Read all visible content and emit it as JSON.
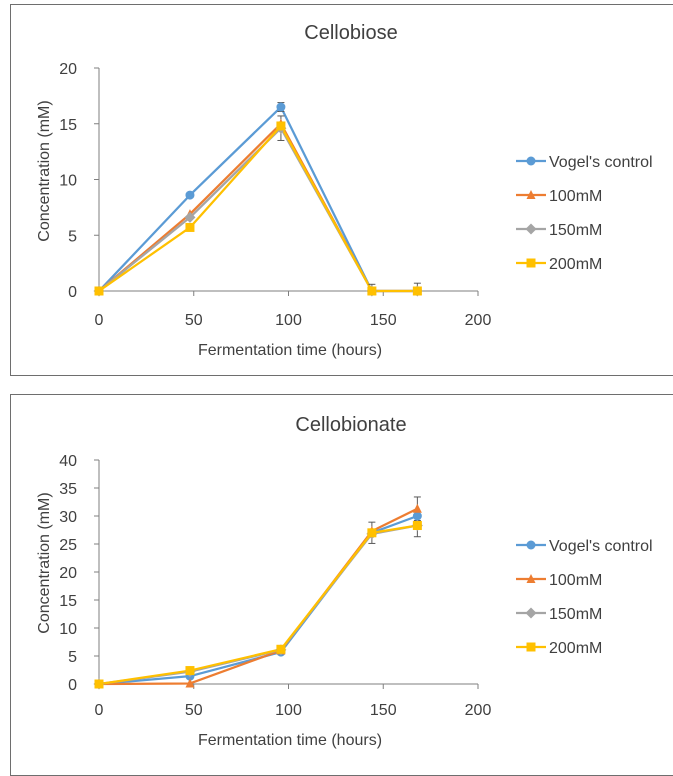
{
  "colors": {
    "vogel": "#5b9bd5",
    "m100": "#ed7d31",
    "m150": "#a5a5a5",
    "m200": "#ffc000",
    "axis": "#7f7f7f",
    "text": "#404040"
  },
  "chart_data": [
    {
      "type": "line",
      "title": "Cellobiose",
      "xlabel": "Fermentation time (hours)",
      "ylabel": "Concentration (mM)",
      "xlim": [
        0,
        200
      ],
      "ylim": [
        0,
        20
      ],
      "xticks": [
        "0",
        "50",
        "100",
        "150",
        "200"
      ],
      "yticks": [
        "0",
        "5",
        "10",
        "15",
        "20"
      ],
      "grid": false,
      "legend_position": "right",
      "series": [
        {
          "name": "Vogel's control",
          "marker": "circle",
          "color": "#5b9bd5",
          "x": [
            0,
            48,
            96,
            144,
            168
          ],
          "y": [
            0,
            8.6,
            16.5,
            0,
            0
          ]
        },
        {
          "name": "100mM",
          "marker": "triangle",
          "color": "#ed7d31",
          "x": [
            0,
            48,
            96,
            144,
            168
          ],
          "y": [
            0,
            6.9,
            15.0,
            0,
            0
          ]
        },
        {
          "name": "150mM",
          "marker": "diamond",
          "color": "#a5a5a5",
          "x": [
            0,
            48,
            96,
            144,
            168
          ],
          "y": [
            0,
            6.6,
            14.6,
            0,
            0
          ]
        },
        {
          "name": "200mM",
          "marker": "square",
          "color": "#ffc000",
          "x": [
            0,
            48,
            96,
            144,
            168
          ],
          "y": [
            0,
            5.7,
            14.8,
            0,
            0
          ]
        }
      ],
      "error_bars": [
        {
          "x": 96,
          "y": 16.5,
          "err": 0.4
        },
        {
          "x": 96,
          "y": 14.6,
          "err": 1.1
        },
        {
          "x": 144,
          "y": 0,
          "err": 0.6
        },
        {
          "x": 168,
          "y": 0,
          "err": 0.7
        }
      ]
    },
    {
      "type": "line",
      "title": "Cellobionate",
      "xlabel": "Fermentation time (hours)",
      "ylabel": "Concentration (mM)",
      "xlim": [
        0,
        200
      ],
      "ylim": [
        0,
        40
      ],
      "xticks": [
        "0",
        "50",
        "100",
        "150",
        "200"
      ],
      "yticks": [
        "0",
        "5",
        "10",
        "15",
        "20",
        "25",
        "30",
        "35",
        "40"
      ],
      "grid": false,
      "legend_position": "right",
      "series": [
        {
          "name": "Vogel's control",
          "marker": "circle",
          "color": "#5b9bd5",
          "x": [
            0,
            48,
            96,
            144,
            168
          ],
          "y": [
            0,
            1.4,
            5.7,
            27.0,
            30.0
          ]
        },
        {
          "name": "100mM",
          "marker": "triangle",
          "color": "#ed7d31",
          "x": [
            0,
            48,
            96,
            144,
            168
          ],
          "y": [
            0,
            0.1,
            6.0,
            27.3,
            31.3
          ]
        },
        {
          "name": "150mM",
          "marker": "diamond",
          "color": "#a5a5a5",
          "x": [
            0,
            48,
            96,
            144,
            168
          ],
          "y": [
            0,
            2.2,
            6.1,
            26.8,
            28.3
          ]
        },
        {
          "name": "200mM",
          "marker": "square",
          "color": "#ffc000",
          "x": [
            0,
            48,
            96,
            144,
            168
          ],
          "y": [
            0,
            2.4,
            6.2,
            27.0,
            28.3
          ]
        }
      ],
      "error_bars": [
        {
          "x": 144,
          "y": 27.0,
          "err": 1.9
        },
        {
          "x": 168,
          "y": 31.3,
          "err": 2.1
        },
        {
          "x": 168,
          "y": 28.3,
          "err": 2.0
        }
      ]
    }
  ]
}
